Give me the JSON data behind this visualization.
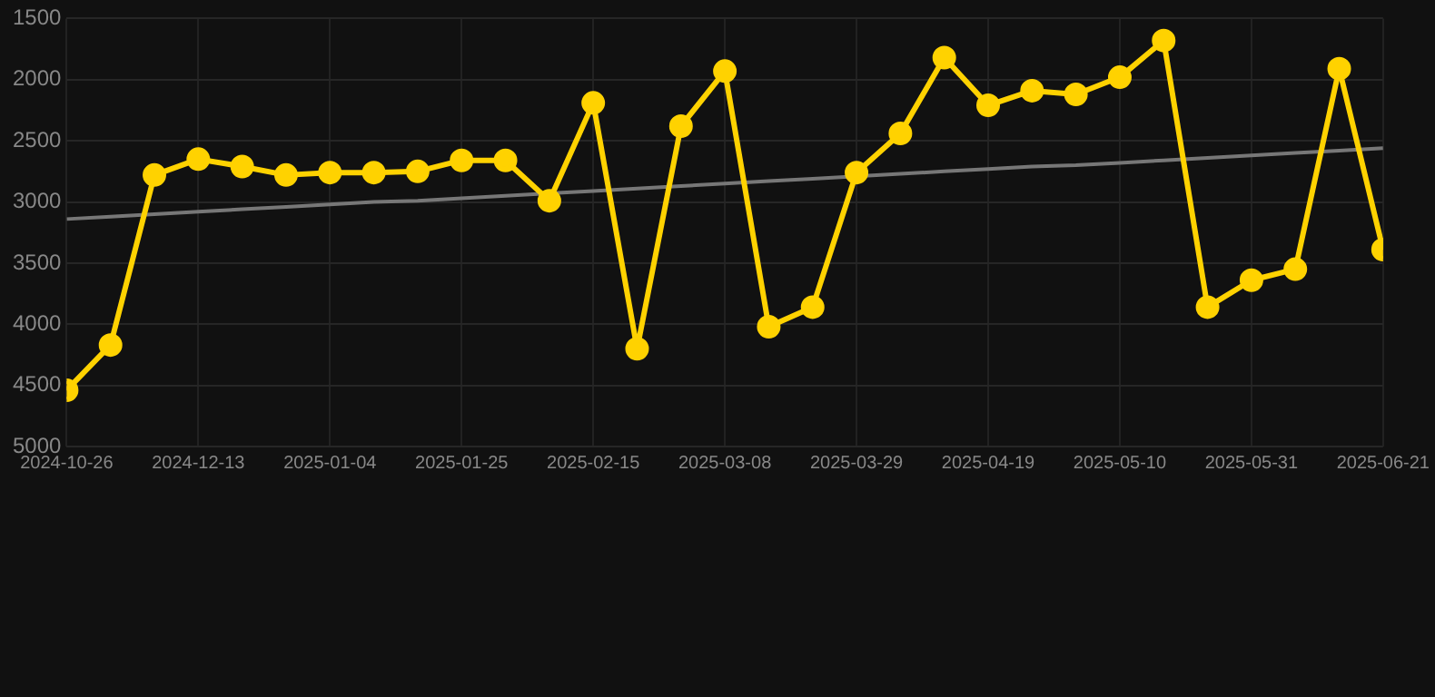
{
  "chart_data": {
    "type": "line",
    "categories": [
      "2024-10-26",
      null,
      null,
      "2024-12-13",
      null,
      null,
      "2025-01-04",
      null,
      null,
      "2025-01-25",
      null,
      null,
      "2025-02-15",
      null,
      null,
      "2025-03-08",
      null,
      null,
      "2025-03-29",
      null,
      null,
      "2025-04-19",
      null,
      null,
      "2025-05-10",
      null,
      null,
      "2025-05-31",
      null,
      null,
      "2025-06-21"
    ],
    "series": [
      {
        "color": "#ffd200",
        "marker": "circle",
        "values": [
          4540,
          4170,
          2780,
          2650,
          2710,
          2780,
          2760,
          2760,
          2750,
          2660,
          2660,
          2990,
          2190,
          4200,
          2380,
          1930,
          4020,
          3860,
          2760,
          2440,
          1820,
          2210,
          2090,
          2120,
          1980,
          1680,
          3860,
          3640,
          3550,
          1910,
          3390
        ]
      },
      {
        "type": "line",
        "color": "#777777",
        "marker": "none",
        "values": [
          3140,
          3120,
          3100,
          3080,
          3060,
          3040,
          3020,
          3000,
          2990,
          2970,
          2950,
          2930,
          2910,
          2890,
          2870,
          2850,
          2830,
          2810,
          2790,
          2770,
          2750,
          2730,
          2710,
          2700,
          2680,
          2660,
          2640,
          2620,
          2600,
          2580,
          2560
        ]
      }
    ],
    "ylim": [
      5000,
      1500
    ],
    "yticks": [
      1500,
      2000,
      2500,
      3000,
      3500,
      4000,
      4500,
      5000
    ],
    "grid": true,
    "legend": false
  }
}
